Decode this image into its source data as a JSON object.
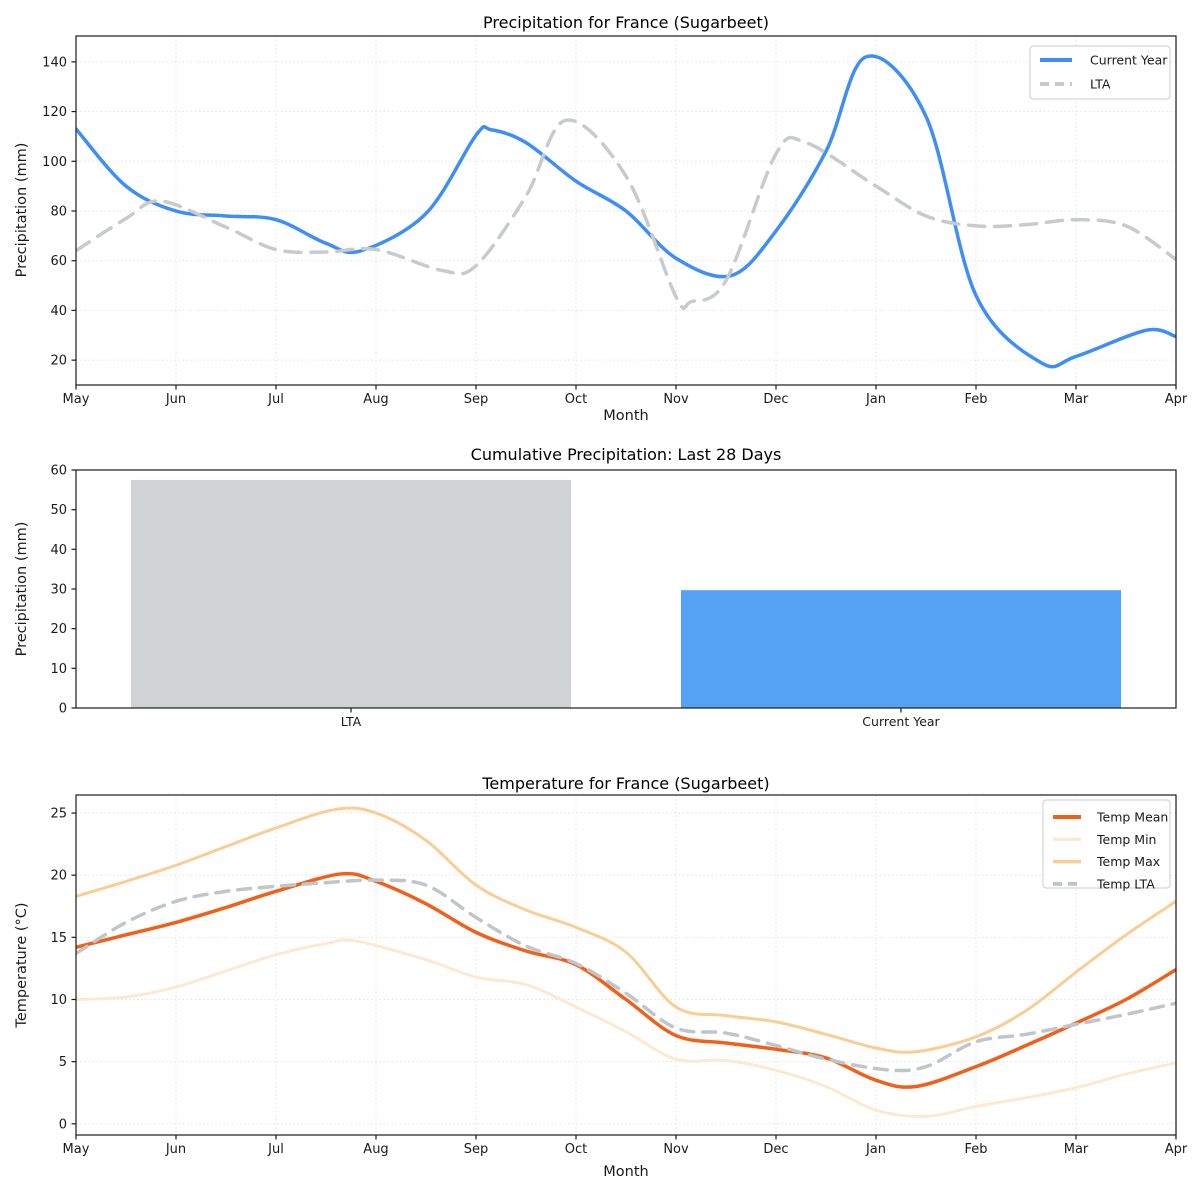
{
  "chart_data": [
    {
      "type": "line",
      "title": "Precipitation for France (Sugarbeet)",
      "xlabel": "Month",
      "ylabel": "Precipitation (mm)",
      "x_tick_labels": [
        "May",
        "Jun",
        "Jul",
        "Aug",
        "Sep",
        "Oct",
        "Nov",
        "Dec",
        "Jan",
        "Feb",
        "Mar",
        "Apr"
      ],
      "y_ticks": [
        20,
        40,
        60,
        80,
        100,
        120,
        140
      ],
      "ylim": [
        10,
        150.4
      ],
      "grid": true,
      "legend_position": "upper right",
      "series": [
        {
          "name": "Current Year",
          "color": "#3F8EF6",
          "dash": null,
          "width": 3.5,
          "x": [
            0,
            0.5,
            1,
            1.5,
            2,
            2.5,
            2.85,
            3.5,
            4,
            4.15,
            4.5,
            5,
            5.5,
            6,
            6.55,
            7,
            7.5,
            7.9,
            8.5,
            9,
            9.65,
            10,
            10.7,
            11
          ],
          "y": [
            113,
            90,
            80,
            78,
            76.5,
            67,
            64,
            79,
            110.5,
            112.7,
            107.5,
            92,
            80,
            61,
            54,
            72,
            104,
            142,
            118,
            46,
            19,
            21.5,
            32,
            29.5
          ]
        },
        {
          "name": "LTA",
          "color": "#C8CBCB",
          "dash": "16 10",
          "width": 3.5,
          "x": [
            0,
            0.5,
            0.85,
            1.5,
            2,
            2.5,
            3,
            3.67,
            4,
            4.5,
            4.9,
            5.5,
            6,
            6.15,
            6.5,
            7,
            7.3,
            8,
            8.5,
            9,
            9.5,
            10,
            10.5,
            11
          ],
          "y": [
            64,
            77,
            84,
            73.5,
            64.5,
            63.5,
            64.5,
            56,
            58,
            86,
            116.5,
            94,
            45.5,
            43.5,
            52,
            103,
            107.5,
            90,
            78,
            74,
            74.5,
            76.5,
            74,
            60.5
          ]
        }
      ]
    },
    {
      "type": "bar",
      "title": "Cumulative Precipitation: Last 28 Days",
      "ylabel": "Precipitation (mm)",
      "categories": [
        "LTA",
        "Current Year"
      ],
      "values": [
        57.5,
        29.7
      ],
      "colors": [
        "#D0D3D4",
        "#55A1F3"
      ],
      "y_ticks": [
        0,
        10,
        20,
        30,
        40,
        50,
        60
      ],
      "ylim": [
        0,
        60
      ],
      "grid": false
    },
    {
      "type": "line",
      "title": "Temperature for France (Sugarbeet)",
      "xlabel": "Month",
      "ylabel": "Temperature (°C)",
      "x_tick_labels": [
        "May",
        "Jun",
        "Jul",
        "Aug",
        "Sep",
        "Oct",
        "Nov",
        "Dec",
        "Jan",
        "Feb",
        "Mar",
        "Apr"
      ],
      "y_ticks": [
        0,
        5,
        10,
        15,
        20,
        25
      ],
      "ylim": [
        -0.9,
        26.45
      ],
      "grid": true,
      "legend_position": "upper right",
      "series": [
        {
          "name": "Temp Mean",
          "color": "#F1601A",
          "dash": null,
          "width": 3.5,
          "x": [
            0,
            0.5,
            1,
            1.5,
            2,
            2.65,
            3,
            3.5,
            4,
            4.5,
            5,
            5.5,
            6,
            6.5,
            7,
            7.5,
            8,
            8.4,
            9,
            9.5,
            10,
            10.5,
            11
          ],
          "y": [
            14.2,
            15.2,
            16.2,
            17.4,
            18.7,
            20.1,
            19.5,
            17.7,
            15.4,
            13.9,
            12.8,
            10.0,
            7.1,
            6.5,
            6.0,
            5.3,
            3.5,
            3.0,
            4.6,
            6.3,
            8.1,
            10.0,
            12.4
          ]
        },
        {
          "name": "Temp Min",
          "color": "#FDE9D2",
          "dash": null,
          "width": 3,
          "x": [
            0,
            0.5,
            1,
            1.5,
            2,
            2.5,
            2.8,
            3.5,
            4,
            4.5,
            5,
            5.5,
            6,
            6.5,
            7,
            7.5,
            8,
            8.5,
            9,
            9.5,
            10,
            10.5,
            11
          ],
          "y": [
            10.0,
            10.2,
            11.0,
            12.3,
            13.6,
            14.5,
            14.7,
            13.2,
            11.8,
            11.2,
            9.4,
            7.4,
            5.2,
            5.1,
            4.3,
            3.0,
            1.1,
            0.6,
            1.4,
            2.1,
            2.9,
            4.0,
            4.9
          ]
        },
        {
          "name": "Temp Max",
          "color": "#F9CE96",
          "dash": null,
          "width": 3,
          "x": [
            0,
            0.5,
            1,
            1.5,
            2,
            2.6,
            3,
            3.5,
            4,
            4.5,
            5,
            5.5,
            6,
            6.5,
            7,
            7.5,
            8,
            8.4,
            9,
            9.5,
            10,
            10.5,
            11
          ],
          "y": [
            18.3,
            19.5,
            20.8,
            22.3,
            23.8,
            25.3,
            25.0,
            22.8,
            19.2,
            17.2,
            15.8,
            13.8,
            9.4,
            8.7,
            8.2,
            7.2,
            6.1,
            5.8,
            7.0,
            9.1,
            12.2,
            15.2,
            17.9
          ]
        },
        {
          "name": "Temp LTA",
          "color": "#C0C5C9",
          "dash": "13 9",
          "width": 3.5,
          "x": [
            0,
            0.5,
            1,
            1.5,
            2,
            2.5,
            3,
            3.5,
            4,
            4.5,
            5,
            5.5,
            6,
            6.5,
            7,
            7.5,
            8.1,
            8.5,
            9,
            9.5,
            10,
            10.5,
            11
          ],
          "y": [
            13.7,
            16.2,
            17.9,
            18.7,
            19.1,
            19.4,
            19.6,
            19.2,
            16.6,
            14.3,
            12.9,
            10.5,
            7.7,
            7.3,
            6.3,
            5.2,
            4.35,
            4.6,
            6.6,
            7.2,
            8.0,
            8.8,
            9.7
          ]
        }
      ]
    }
  ]
}
